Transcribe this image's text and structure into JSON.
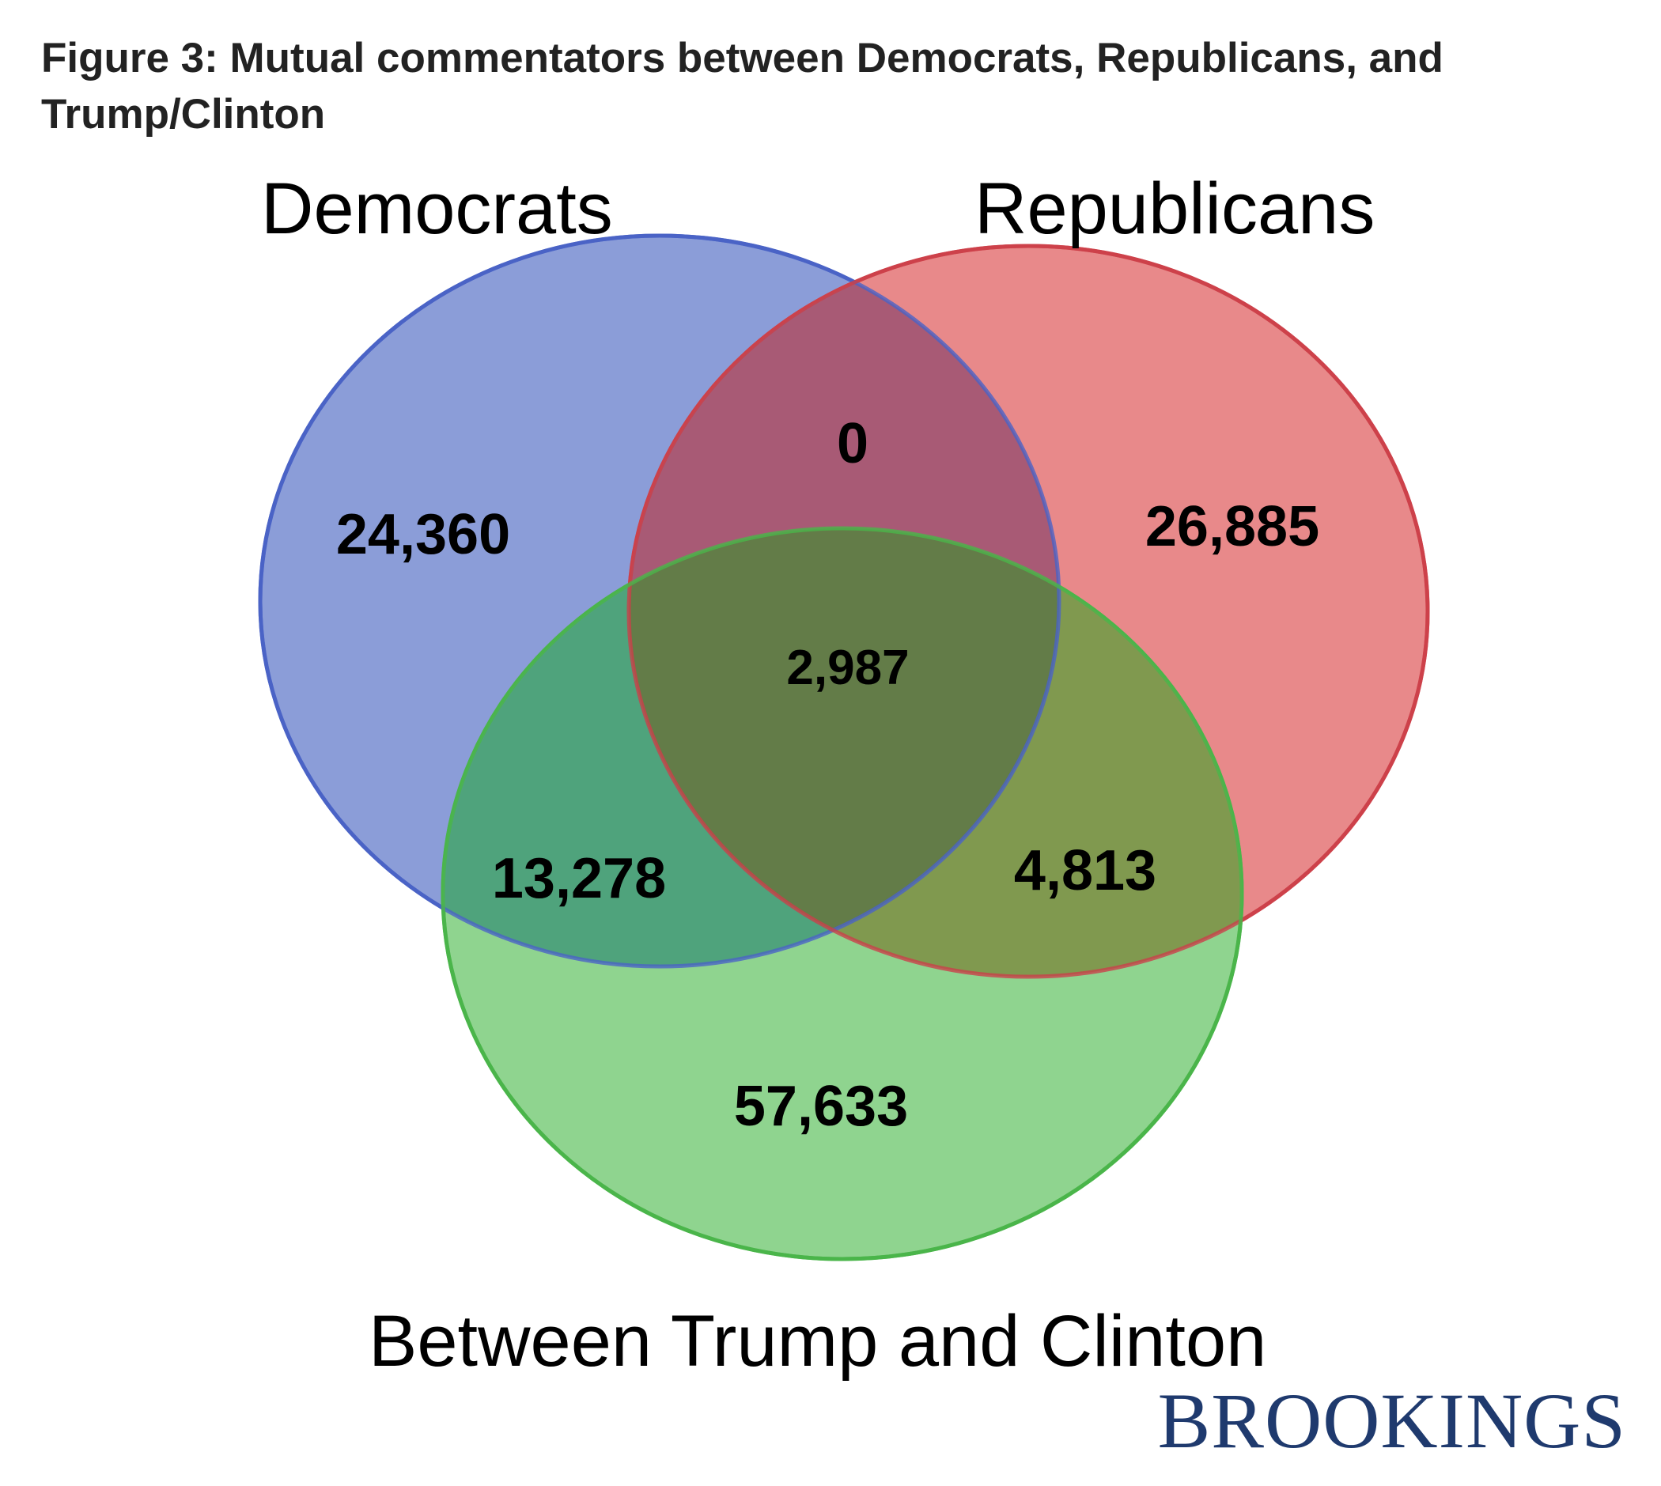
{
  "title": "Figure 3: Mutual commentators between Democrats, Republicans, and Trump/Clinton",
  "title_lines": [
    "Figure 3: Mutual commentators between Democrats, Republicans, and",
    "Trump/Clinton"
  ],
  "sets": [
    {
      "key": "democrats",
      "label": "Democrats",
      "fill": "#8b9dd8",
      "stroke": "#4a63c6"
    },
    {
      "key": "republicans",
      "label": "Republicans",
      "fill": "#e8898a",
      "stroke": "#d9454a"
    },
    {
      "key": "trump_clinton",
      "label": "Between Trump and Clinton",
      "fill": "#8fd48f",
      "stroke": "#4ab54a"
    }
  ],
  "regions": {
    "democrats_only": "24,360",
    "republicans_only": "26,885",
    "trump_clinton_only": "57,633",
    "democrats_republicans": "0",
    "democrats_trump_clinton": "13,278",
    "republicans_trump_clinton": "4,813",
    "all_three": "2,987"
  },
  "logo": "BROOKINGS"
}
